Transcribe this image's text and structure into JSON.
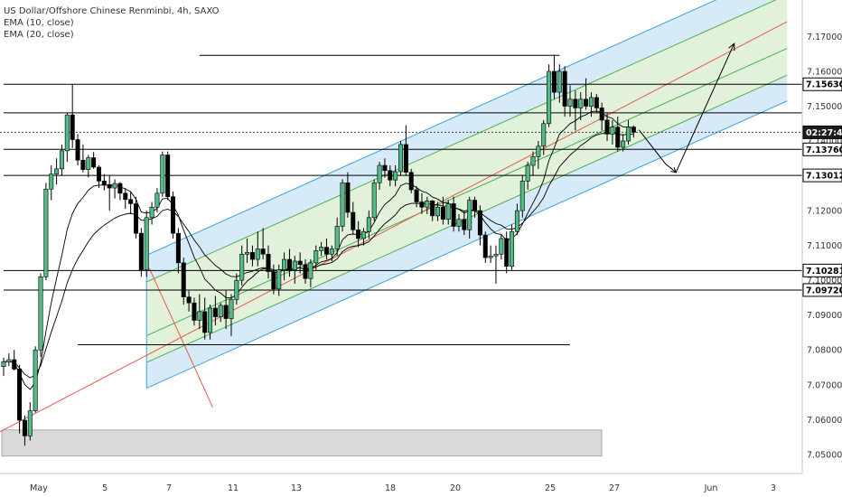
{
  "legend": {
    "symbol_line": "US Dollar/Offshore Chinese Renminbi, 4h, SAXO",
    "ema1": "EMA (10, close)",
    "ema2": "EMA (20, close)"
  },
  "chart_data": {
    "type": "candlestick",
    "x_ticks": [
      "May",
      "5",
      "7",
      "11",
      "13",
      "18",
      "20",
      "25",
      "27",
      "Jun",
      "3"
    ],
    "y_ticks": [
      "7.17000",
      "7.16000",
      "7.15000",
      "7.14000",
      "7.13000",
      "7.12000",
      "7.11000",
      "7.10000",
      "7.09000",
      "7.08000",
      "7.07000",
      "7.06000",
      "7.05000"
    ],
    "ylim": [
      7.0445,
      7.1805
    ],
    "price_labels": [
      {
        "text": "7.15630",
        "value": 7.1563,
        "style": "boxed"
      },
      {
        "text": "02:27:48",
        "value": 7.1425,
        "style": "dark"
      },
      {
        "text": "7.13760",
        "value": 7.1376,
        "style": "boxed"
      },
      {
        "text": "7.13012",
        "value": 7.13012,
        "style": "boxed"
      },
      {
        "text": "7.10281",
        "value": 7.10281,
        "style": "boxed"
      },
      {
        "text": "7.09720",
        "value": 7.0972,
        "style": "boxed"
      }
    ],
    "horizontal_levels": [
      {
        "value": 7.1646,
        "from_bar": 37,
        "to_bar": 105
      },
      {
        "value": 7.1563,
        "from_bar": 0,
        "to_bar": 148
      },
      {
        "value": 7.1481,
        "from_bar": 0,
        "to_bar": 148
      },
      {
        "value": 7.1376,
        "from_bar": 0,
        "to_bar": 148
      },
      {
        "value": 7.13012,
        "from_bar": 0,
        "to_bar": 148
      },
      {
        "value": 7.10281,
        "from_bar": 0,
        "to_bar": 148
      },
      {
        "value": 7.0972,
        "from_bar": 0,
        "to_bar": 148
      },
      {
        "value": 7.0815,
        "from_bar": 14,
        "to_bar": 107
      }
    ],
    "dashed_level": 7.1425,
    "support_zone": [
      7.0495,
      7.057
    ],
    "channel": {
      "start_bar": 27,
      "end_bar": 148,
      "mid_start": 7.0918,
      "mid_end": 7.1743,
      "offsets": [
        -0.0228,
        -0.0154,
        -0.0077,
        0.0077,
        0.0154
      ]
    },
    "colors": {
      "up": "#53b987",
      "down": "#000000",
      "fill_blue": "#cfe6f7",
      "fill_green": "#dcefd4",
      "line_blue": "#3ea2dd",
      "line_green": "#4caf50",
      "line_red": "#e45b4f",
      "zone": "#d9d9d9"
    },
    "candles": [
      [
        7.0752,
        7.0778,
        7.0725,
        7.0766
      ],
      [
        7.0766,
        7.079,
        7.0754,
        7.0772
      ],
      [
        7.0772,
        7.08,
        7.0741,
        7.0745
      ],
      [
        7.0745,
        7.0757,
        7.056,
        7.0598
      ],
      [
        7.0598,
        7.0612,
        7.0525,
        7.0553
      ],
      [
        7.0553,
        7.065,
        7.054,
        7.0625
      ],
      [
        7.0625,
        7.081,
        7.062,
        7.08
      ],
      [
        7.08,
        7.102,
        7.078,
        7.101
      ],
      [
        7.101,
        7.128,
        7.1,
        7.1262
      ],
      [
        7.1262,
        7.133,
        7.123,
        7.1305
      ],
      [
        7.1305,
        7.135,
        7.1275,
        7.132
      ],
      [
        7.132,
        7.139,
        7.13,
        7.1372
      ],
      [
        7.1372,
        7.148,
        7.134,
        7.1475
      ],
      [
        7.1475,
        7.1562,
        7.138,
        7.1404
      ],
      [
        7.1404,
        7.142,
        7.133,
        7.1345
      ],
      [
        7.1345,
        7.139,
        7.131,
        7.1318
      ],
      [
        7.1318,
        7.136,
        7.1295,
        7.1352
      ],
      [
        7.1352,
        7.1368,
        7.132,
        7.1325
      ],
      [
        7.1325,
        7.133,
        7.1265,
        7.1285
      ],
      [
        7.1285,
        7.1305,
        7.1258,
        7.1275
      ],
      [
        7.1275,
        7.13,
        7.12,
        7.1265
      ],
      [
        7.1265,
        7.129,
        7.1235,
        7.1278
      ],
      [
        7.1278,
        7.1282,
        7.123,
        7.125
      ],
      [
        7.125,
        7.1265,
        7.1205,
        7.1232
      ],
      [
        7.1232,
        7.1255,
        7.119,
        7.122
      ],
      [
        7.122,
        7.124,
        7.112,
        7.1135
      ],
      [
        7.1135,
        7.115,
        7.101,
        7.103
      ],
      [
        7.103,
        7.12,
        7.101,
        7.118
      ],
      [
        7.118,
        7.1225,
        7.116,
        7.121
      ],
      [
        7.121,
        7.1265,
        7.1195,
        7.125
      ],
      [
        7.125,
        7.137,
        7.124,
        7.136
      ],
      [
        7.136,
        7.137,
        7.123,
        7.124
      ],
      [
        7.124,
        7.1255,
        7.112,
        7.1135
      ],
      [
        7.1135,
        7.115,
        7.102,
        7.105
      ],
      [
        7.105,
        7.1065,
        7.093,
        7.0952
      ],
      [
        7.0952,
        7.097,
        7.091,
        7.0935
      ],
      [
        7.0935,
        7.095,
        7.087,
        7.0885
      ],
      [
        7.0885,
        7.096,
        7.086,
        7.091
      ],
      [
        7.091,
        7.095,
        7.083,
        7.085
      ],
      [
        7.085,
        7.093,
        7.083,
        7.092
      ],
      [
        7.092,
        7.0955,
        7.087,
        7.0895
      ],
      [
        7.0895,
        7.0935,
        7.088,
        7.0928
      ],
      [
        7.0928,
        7.097,
        7.086,
        7.089
      ],
      [
        7.089,
        7.096,
        7.084,
        7.0945
      ],
      [
        7.0945,
        7.102,
        7.093,
        7.1
      ],
      [
        7.1,
        7.11,
        7.0985,
        7.1075
      ],
      [
        7.1075,
        7.112,
        7.105,
        7.108
      ],
      [
        7.108,
        7.11,
        7.104,
        7.106
      ],
      [
        7.106,
        7.114,
        7.104,
        7.109
      ],
      [
        7.109,
        7.115,
        7.106,
        7.1075
      ],
      [
        7.1075,
        7.11,
        7.1005,
        7.1025
      ],
      [
        7.1025,
        7.1045,
        7.096,
        7.0975
      ],
      [
        7.0975,
        7.1045,
        7.0955,
        7.103
      ],
      [
        7.103,
        7.108,
        7.1,
        7.106
      ],
      [
        7.106,
        7.109,
        7.101,
        7.103
      ],
      [
        7.103,
        7.107,
        7.099,
        7.1055
      ],
      [
        7.1055,
        7.108,
        7.102,
        7.1045
      ],
      [
        7.1045,
        7.106,
        7.099,
        7.1005
      ],
      [
        7.1005,
        7.106,
        7.098,
        7.105
      ],
      [
        7.105,
        7.11,
        7.103,
        7.1085
      ],
      [
        7.1085,
        7.111,
        7.107,
        7.1095
      ],
      [
        7.1095,
        7.112,
        7.106,
        7.1075
      ],
      [
        7.1075,
        7.11,
        7.1055,
        7.109
      ],
      [
        7.109,
        7.118,
        7.107,
        7.1155
      ],
      [
        7.1155,
        7.129,
        7.114,
        7.128
      ],
      [
        7.128,
        7.131,
        7.118,
        7.1195
      ],
      [
        7.1195,
        7.1225,
        7.113,
        7.1145
      ],
      [
        7.1145,
        7.117,
        7.1095,
        7.112
      ],
      [
        7.112,
        7.115,
        7.11,
        7.114
      ],
      [
        7.114,
        7.12,
        7.112,
        7.118
      ],
      [
        7.118,
        7.129,
        7.117,
        7.128
      ],
      [
        7.128,
        7.134,
        7.126,
        7.133
      ],
      [
        7.133,
        7.135,
        7.1295,
        7.1315
      ],
      [
        7.1315,
        7.133,
        7.127,
        7.1288
      ],
      [
        7.1288,
        7.133,
        7.127,
        7.1312
      ],
      [
        7.1312,
        7.14,
        7.13,
        7.139
      ],
      [
        7.139,
        7.1445,
        7.13,
        7.131
      ],
      [
        7.131,
        7.132,
        7.125,
        7.126
      ],
      [
        7.126,
        7.127,
        7.121,
        7.1225
      ],
      [
        7.1225,
        7.125,
        7.119,
        7.121
      ],
      [
        7.121,
        7.124,
        7.119,
        7.1228
      ],
      [
        7.1228,
        7.123,
        7.117,
        7.1185
      ],
      [
        7.1185,
        7.1225,
        7.117,
        7.121
      ],
      [
        7.121,
        7.124,
        7.116,
        7.1175
      ],
      [
        7.1175,
        7.123,
        7.116,
        7.122
      ],
      [
        7.122,
        7.124,
        7.114,
        7.1155
      ],
      [
        7.1155,
        7.119,
        7.114,
        7.1175
      ],
      [
        7.1175,
        7.12,
        7.113,
        7.1145
      ],
      [
        7.1145,
        7.124,
        7.112,
        7.123
      ],
      [
        7.123,
        7.124,
        7.118,
        7.12
      ],
      [
        7.12,
        7.1215,
        7.11,
        7.113
      ],
      [
        7.113,
        7.114,
        7.105,
        7.1065
      ],
      [
        7.1065,
        7.11,
        7.105,
        7.107
      ],
      [
        7.107,
        7.11,
        7.099,
        7.1075
      ],
      [
        7.1075,
        7.113,
        7.106,
        7.112
      ],
      [
        7.112,
        7.114,
        7.102,
        7.104
      ],
      [
        7.104,
        7.116,
        7.103,
        7.114
      ],
      [
        7.114,
        7.122,
        7.113,
        7.12
      ],
      [
        7.12,
        7.13,
        7.118,
        7.1285
      ],
      [
        7.1285,
        7.134,
        7.126,
        7.133
      ],
      [
        7.133,
        7.137,
        7.13,
        7.1355
      ],
      [
        7.1355,
        7.14,
        7.132,
        7.1385
      ],
      [
        7.1385,
        7.146,
        7.136,
        7.145
      ],
      [
        7.145,
        7.162,
        7.144,
        7.16
      ],
      [
        7.16,
        7.1648,
        7.152,
        7.154
      ],
      [
        7.154,
        7.162,
        7.151,
        7.16
      ],
      [
        7.16,
        7.1615,
        7.147,
        7.15
      ],
      [
        7.15,
        7.156,
        7.147,
        7.152
      ],
      [
        7.152,
        7.1545,
        7.143,
        7.1495
      ],
      [
        7.1495,
        7.154,
        7.146,
        7.152
      ],
      [
        7.152,
        7.158,
        7.149,
        7.15
      ],
      [
        7.15,
        7.154,
        7.147,
        7.1525
      ],
      [
        7.1525,
        7.1535,
        7.148,
        7.1495
      ],
      [
        7.1495,
        7.151,
        7.143,
        7.146
      ],
      [
        7.146,
        7.148,
        7.14,
        7.142
      ],
      [
        7.142,
        7.146,
        7.139,
        7.144
      ],
      [
        7.144,
        7.147,
        7.137,
        7.1382
      ],
      [
        7.1382,
        7.142,
        7.137,
        7.14
      ],
      [
        7.14,
        7.146,
        7.139,
        7.144
      ],
      [
        7.144,
        7.1445,
        7.141,
        7.1425
      ]
    ],
    "trend_arrow": {
      "points": [
        [
          120,
          7.1432
        ],
        [
          125,
          7.1335
        ],
        [
          127,
          7.131
        ],
        [
          138,
          7.168
        ]
      ]
    }
  }
}
